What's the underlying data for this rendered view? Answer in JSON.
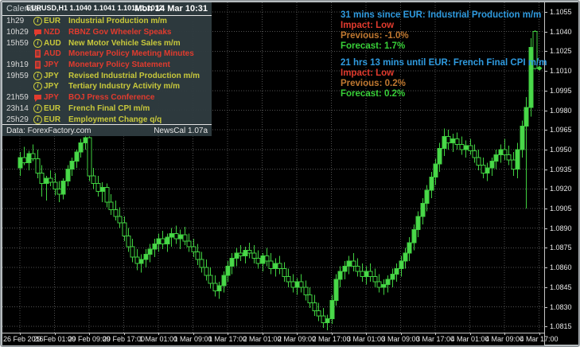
{
  "quote_line": "EURUSD,H1 1.1040 1.1041 1.1011 1.1012",
  "calendar": {
    "title": "Calendar",
    "clock": "Mon 14 Mar 10:31",
    "rows": [
      {
        "time": "1h29",
        "icon": "info",
        "ccy": "EUR",
        "event": "Industrial Production m/m",
        "impact": "low"
      },
      {
        "time": "10h29",
        "icon": "speech",
        "ccy": "NZD",
        "event": "RBNZ Gov Wheeler Speaks",
        "impact": "high"
      },
      {
        "time": "15h59",
        "icon": "info",
        "ccy": "AUD",
        "event": "New Motor Vehicle Sales m/m",
        "impact": "low"
      },
      {
        "time": "",
        "icon": "report",
        "ccy": "AUD",
        "event": "Monetary Policy Meeting Minutes",
        "impact": "high"
      },
      {
        "time": "19h19",
        "icon": "report",
        "ccy": "JPY",
        "event": "Monetary Policy Statement",
        "impact": "high"
      },
      {
        "time": "19h59",
        "icon": "info",
        "ccy": "JPY",
        "event": "Revised Industrial Production m/m",
        "impact": "low"
      },
      {
        "time": "",
        "icon": "info",
        "ccy": "JPY",
        "event": "Tertiary Industry Activity m/m",
        "impact": "low"
      },
      {
        "time": "21h59",
        "icon": "speech",
        "ccy": "JPY",
        "event": "BOJ Press Conference",
        "impact": "high"
      },
      {
        "time": "23h14",
        "icon": "info",
        "ccy": "EUR",
        "event": "French Final CPI m/m",
        "impact": "low"
      },
      {
        "time": "25h29",
        "icon": "info",
        "ccy": "EUR",
        "event": "Employment Change q/q",
        "impact": "low"
      }
    ],
    "footer_left": "Data: ForexFactory.com",
    "footer_right": "NewsCal 1.07a"
  },
  "info_blocks": [
    {
      "headline": "31 mins since EUR: Industrial Production m/m",
      "impact": "Impact: Low",
      "previous": "Previous: -1.0%",
      "forecast": "Forecast: 1.7%"
    },
    {
      "headline": "21 hrs 13 mins until EUR: French Final CPI m/m",
      "impact": "Impact: Low",
      "previous": "Previous: 0.2%",
      "forecast": "Forecast: 0.2%"
    }
  ],
  "chart_data": {
    "type": "candlestick",
    "symbol": "EURUSD",
    "timeframe": "H1",
    "price_labels": [
      "1.1055",
      "1.1040",
      "1.1025",
      "1.1010",
      "1.0995",
      "1.0980",
      "1.0965",
      "1.0950",
      "1.0935",
      "1.0920",
      "1.0905",
      "1.0890",
      "1.0875",
      "1.0860",
      "1.0845",
      "1.0830",
      "1.0815"
    ],
    "price_top": 1.1055,
    "price_step": 0.0015,
    "ylim": [
      1.0815,
      1.1055
    ],
    "time_labels": [
      "26 Feb 2016",
      "29 Feb 01:00",
      "29 Feb 09:00",
      "29 Feb 17:00",
      "1 Mar 01:00",
      "1 Mar 09:00",
      "1 Mar 17:00",
      "2 Mar 01:00",
      "2 Mar 09:00",
      "2 Mar 17:00",
      "3 Mar 01:00",
      "3 Mar 09:00",
      "3 Mar 17:00",
      "4 Mar 01:00",
      "4 Mar 09:00",
      "4 Mar 17:00"
    ],
    "bars_per_label": 8,
    "grid": true,
    "current_price": 1.1012,
    "candles": [
      [
        1.0936,
        1.0948,
        1.093,
        1.0944
      ],
      [
        1.0944,
        1.0952,
        1.0938,
        1.094
      ],
      [
        1.094,
        1.0949,
        1.0934,
        1.0947
      ],
      [
        1.0947,
        1.0954,
        1.0941,
        1.0943
      ],
      [
        1.0943,
        1.095,
        1.0928,
        1.0932
      ],
      [
        1.0932,
        1.0938,
        1.0914,
        1.0924
      ],
      [
        1.0924,
        1.093,
        1.0911,
        1.0928
      ],
      [
        1.0928,
        1.0934,
        1.0922,
        1.0925
      ],
      [
        1.0925,
        1.0932,
        1.0915,
        1.092
      ],
      [
        1.092,
        1.0926,
        1.091,
        1.0916
      ],
      [
        1.0916,
        1.0928,
        1.0912,
        1.0926
      ],
      [
        1.0926,
        1.0938,
        1.0922,
        1.0935
      ],
      [
        1.0935,
        1.0944,
        1.093,
        1.0941
      ],
      [
        1.0941,
        1.095,
        1.0936,
        1.0948
      ],
      [
        1.0948,
        1.0958,
        1.0944,
        1.0955
      ],
      [
        1.0955,
        1.0964,
        1.095,
        1.0959
      ],
      [
        1.0959,
        1.0961,
        1.0926,
        1.093
      ],
      [
        1.093,
        1.0936,
        1.092,
        1.0924
      ],
      [
        1.0924,
        1.093,
        1.0914,
        1.0918
      ],
      [
        1.0918,
        1.0925,
        1.091,
        1.0921
      ],
      [
        1.0921,
        1.0924,
        1.0906,
        1.091
      ],
      [
        1.091,
        1.0916,
        1.09,
        1.0904
      ],
      [
        1.0904,
        1.0911,
        1.0896,
        1.0899
      ],
      [
        1.0899,
        1.0906,
        1.089,
        1.0894
      ],
      [
        1.0894,
        1.0899,
        1.088,
        1.0884
      ],
      [
        1.0884,
        1.089,
        1.0872,
        1.0876
      ],
      [
        1.0876,
        1.0882,
        1.0864,
        1.0868
      ],
      [
        1.0868,
        1.0874,
        1.0858,
        1.0863
      ],
      [
        1.0863,
        1.087,
        1.0856,
        1.0866
      ],
      [
        1.0866,
        1.0874,
        1.086,
        1.087
      ],
      [
        1.087,
        1.0878,
        1.0864,
        1.0874
      ],
      [
        1.0874,
        1.0882,
        1.0868,
        1.0878
      ],
      [
        1.0878,
        1.0886,
        1.0872,
        1.0882
      ],
      [
        1.0882,
        1.0888,
        1.0874,
        1.0878
      ],
      [
        1.0878,
        1.0886,
        1.0872,
        1.0883
      ],
      [
        1.0883,
        1.089,
        1.0876,
        1.0886
      ],
      [
        1.0886,
        1.0892,
        1.0878,
        1.0882
      ],
      [
        1.0882,
        1.0889,
        1.0874,
        1.0885
      ],
      [
        1.0885,
        1.0891,
        1.0877,
        1.088
      ],
      [
        1.088,
        1.0886,
        1.0872,
        1.0876
      ],
      [
        1.0876,
        1.0882,
        1.0868,
        1.0872
      ],
      [
        1.0872,
        1.0878,
        1.0862,
        1.0866
      ],
      [
        1.0866,
        1.0872,
        1.0856,
        1.086
      ],
      [
        1.086,
        1.0866,
        1.085,
        1.0854
      ],
      [
        1.0854,
        1.086,
        1.0844,
        1.0848
      ],
      [
        1.0848,
        1.0854,
        1.0838,
        1.0842
      ],
      [
        1.0842,
        1.0849,
        1.0836,
        1.0846
      ],
      [
        1.0846,
        1.0857,
        1.0841,
        1.0854
      ],
      [
        1.0854,
        1.0865,
        1.0849,
        1.0861
      ],
      [
        1.0861,
        1.0871,
        1.0855,
        1.0867
      ],
      [
        1.0867,
        1.0875,
        1.0861,
        1.0871
      ],
      [
        1.0871,
        1.0877,
        1.0865,
        1.0869
      ],
      [
        1.0869,
        1.0876,
        1.0863,
        1.0873
      ],
      [
        1.0873,
        1.0879,
        1.0867,
        1.0871
      ],
      [
        1.0871,
        1.0877,
        1.0863,
        1.0867
      ],
      [
        1.0867,
        1.0873,
        1.0859,
        1.0863
      ],
      [
        1.0863,
        1.0871,
        1.0857,
        1.0869
      ],
      [
        1.0869,
        1.0875,
        1.0861,
        1.0865
      ],
      [
        1.0865,
        1.0871,
        1.0855,
        1.0859
      ],
      [
        1.0859,
        1.0867,
        1.0853,
        1.0863
      ],
      [
        1.0863,
        1.0869,
        1.0855,
        1.0859
      ],
      [
        1.0859,
        1.0864,
        1.0849,
        1.0853
      ],
      [
        1.0853,
        1.0859,
        1.0845,
        1.0849
      ],
      [
        1.0849,
        1.0855,
        1.0841,
        1.0845
      ],
      [
        1.0845,
        1.0852,
        1.0839,
        1.0849
      ],
      [
        1.0849,
        1.0855,
        1.0841,
        1.0845
      ],
      [
        1.0845,
        1.085,
        1.0835,
        1.0839
      ],
      [
        1.0839,
        1.0845,
        1.0829,
        1.0833
      ],
      [
        1.0833,
        1.0839,
        1.0823,
        1.0827
      ],
      [
        1.0827,
        1.0833,
        1.0819,
        1.0823
      ],
      [
        1.0823,
        1.0829,
        1.0814,
        1.0818
      ],
      [
        1.0818,
        1.0824,
        1.0812,
        1.0821
      ],
      [
        1.0821,
        1.0839,
        1.0817,
        1.0835
      ],
      [
        1.0835,
        1.0855,
        1.0831,
        1.0851
      ],
      [
        1.0851,
        1.0861,
        1.0845,
        1.0857
      ],
      [
        1.0857,
        1.0865,
        1.0851,
        1.0861
      ],
      [
        1.0861,
        1.0869,
        1.0855,
        1.0865
      ],
      [
        1.0865,
        1.0871,
        1.0857,
        1.0861
      ],
      [
        1.0861,
        1.0867,
        1.0853,
        1.0857
      ],
      [
        1.0857,
        1.0863,
        1.0849,
        1.0853
      ],
      [
        1.0853,
        1.0861,
        1.0847,
        1.0857
      ],
      [
        1.0857,
        1.0863,
        1.0849,
        1.0853
      ],
      [
        1.0853,
        1.0859,
        1.0845,
        1.0849
      ],
      [
        1.0849,
        1.0855,
        1.0841,
        1.0845
      ],
      [
        1.0845,
        1.0851,
        1.0839,
        1.0847
      ],
      [
        1.0847,
        1.0854,
        1.0841,
        1.0851
      ],
      [
        1.0851,
        1.0859,
        1.0845,
        1.0855
      ],
      [
        1.0855,
        1.0863,
        1.0849,
        1.0859
      ],
      [
        1.0859,
        1.0869,
        1.0853,
        1.0865
      ],
      [
        1.0865,
        1.0875,
        1.0859,
        1.0871
      ],
      [
        1.0871,
        1.0883,
        1.0865,
        1.0879
      ],
      [
        1.0879,
        1.0893,
        1.0873,
        1.0889
      ],
      [
        1.0889,
        1.0903,
        1.0883,
        1.0899
      ],
      [
        1.0899,
        1.0913,
        1.0893,
        1.0909
      ],
      [
        1.0909,
        1.0923,
        1.0903,
        1.0919
      ],
      [
        1.0919,
        1.0933,
        1.0913,
        1.0929
      ],
      [
        1.0929,
        1.0943,
        1.0923,
        1.0939
      ],
      [
        1.0939,
        1.0955,
        1.0933,
        1.0951
      ],
      [
        1.0951,
        1.0966,
        1.0945,
        1.096
      ],
      [
        1.096,
        1.0965,
        1.095,
        1.0955
      ],
      [
        1.0955,
        1.0962,
        1.0948,
        1.0958
      ],
      [
        1.0958,
        1.0963,
        1.095,
        1.0954
      ],
      [
        1.0954,
        1.096,
        1.0946,
        1.095
      ],
      [
        1.095,
        1.0957,
        1.0944,
        1.0953
      ],
      [
        1.0953,
        1.0958,
        1.0946,
        1.0949
      ],
      [
        1.0949,
        1.0954,
        1.094,
        1.0944
      ],
      [
        1.0944,
        1.095,
        1.0934,
        1.0938
      ],
      [
        1.0938,
        1.0944,
        1.0928,
        1.0932
      ],
      [
        1.0932,
        1.094,
        1.0926,
        1.0936
      ],
      [
        1.0936,
        1.0944,
        1.093,
        1.0941
      ],
      [
        1.0941,
        1.095,
        1.0935,
        1.0946
      ],
      [
        1.0946,
        1.0954,
        1.094,
        1.095
      ],
      [
        1.095,
        1.0958,
        1.0942,
        1.0946
      ],
      [
        1.0946,
        1.0953,
        1.0938,
        1.0942
      ],
      [
        1.0942,
        1.0948,
        1.093,
        1.0935
      ],
      [
        1.0935,
        1.0955,
        1.0928,
        1.095
      ],
      [
        1.095,
        1.0972,
        1.0944,
        1.0968
      ],
      [
        1.0968,
        1.099,
        1.0905,
        1.0982
      ],
      [
        1.0982,
        1.1035,
        1.0975,
        1.1028
      ],
      [
        1.104,
        1.1041,
        1.1011,
        1.1012
      ]
    ]
  },
  "colors": {
    "background": "#000000",
    "frame": "#b5bbbe",
    "grid": "#515151",
    "candle": "#3fcf3f",
    "bull_fill": "#4ad84a",
    "axis_text": "#e9e9e9",
    "separator": "#c6c6c6",
    "panel_bg": "rgba(47,59,64,0.96)",
    "row_low": "#c9c93b",
    "row_high": "#e23b2e",
    "time_text": "#d9d9d9",
    "panel_title": "#c3cacd",
    "panel_clock": "#ffffff",
    "footer_text": "#e6e6e6",
    "headline_blue": "#2f9be0",
    "impact_red": "#e23b2e",
    "previous_orange": "#c07830",
    "forecast_green": "#38cf38"
  }
}
